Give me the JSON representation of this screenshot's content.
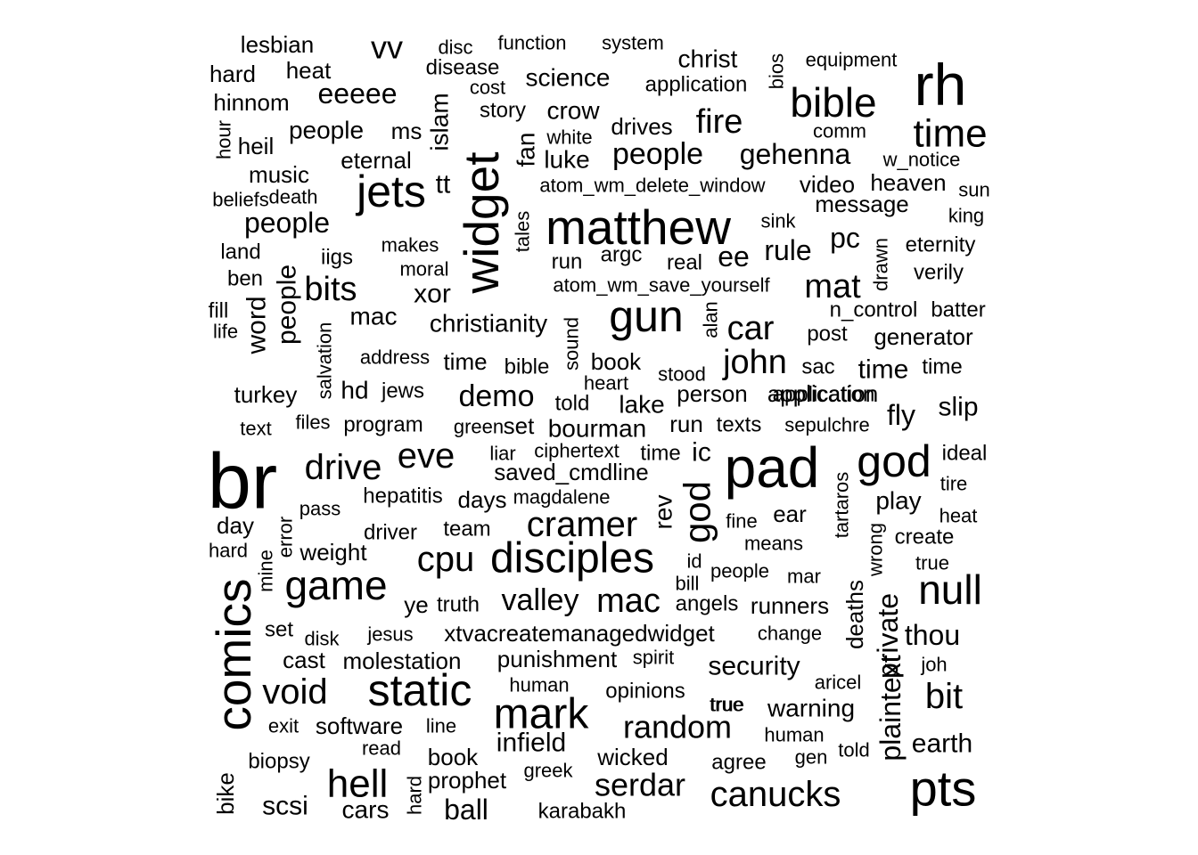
{
  "words": [
    {
      "t": "br",
      "s": 88
    },
    {
      "t": "rh",
      "s": 66
    },
    {
      "t": "pad",
      "s": 64
    },
    {
      "t": "matthew",
      "s": 55
    },
    {
      "t": "widget",
      "s": 55
    },
    {
      "t": "comics",
      "s": 55
    },
    {
      "t": "jets",
      "s": 50
    },
    {
      "t": "gun",
      "s": 50
    },
    {
      "t": "static",
      "s": 50
    },
    {
      "t": "pts",
      "s": 56
    },
    {
      "t": "god",
      "s": 50
    },
    {
      "t": "mark",
      "s": 48
    },
    {
      "t": "disciples",
      "s": 48
    },
    {
      "t": "bible",
      "s": 46
    },
    {
      "t": "game",
      "s": 46
    },
    {
      "t": "null",
      "s": 46
    },
    {
      "t": "time",
      "s": 44
    },
    {
      "t": "hell",
      "s": 44
    },
    {
      "t": "god",
      "s": 42
    },
    {
      "t": "cramer",
      "s": 40
    },
    {
      "t": "cpu",
      "s": 40
    },
    {
      "t": "eve",
      "s": 40
    },
    {
      "t": "drive",
      "s": 40
    },
    {
      "t": "void",
      "s": 40
    },
    {
      "t": "canucks",
      "s": 40
    },
    {
      "t": "bit",
      "s": 40
    },
    {
      "t": "mac",
      "s": 38
    },
    {
      "t": "car",
      "s": 38
    },
    {
      "t": "bits",
      "s": 38
    },
    {
      "t": "john",
      "s": 38
    },
    {
      "t": "mat",
      "s": 38
    },
    {
      "t": "serdar",
      "s": 36
    },
    {
      "t": "fire",
      "s": 38
    },
    {
      "t": "random",
      "s": 36
    },
    {
      "t": "demo",
      "s": 34
    },
    {
      "t": "valley",
      "s": 34
    },
    {
      "t": "vv",
      "s": 36
    },
    {
      "t": "plaintext",
      "s": 32
    },
    {
      "t": "eeeee",
      "s": 32
    },
    {
      "t": "people",
      "s": 34
    },
    {
      "t": "people",
      "s": 32
    },
    {
      "t": "gehenna",
      "s": 32
    },
    {
      "t": "people",
      "s": 30
    },
    {
      "t": "security",
      "s": 30
    },
    {
      "t": "rule",
      "s": 32
    },
    {
      "t": "word",
      "s": 30
    },
    {
      "t": "ee",
      "s": 32
    },
    {
      "t": "pc",
      "s": 32
    },
    {
      "t": "xor",
      "s": 30
    },
    {
      "t": "private",
      "s": 32
    },
    {
      "t": "thou",
      "s": 32
    },
    {
      "t": "ball",
      "s": 32
    },
    {
      "t": "scsi",
      "s": 30
    },
    {
      "t": "play",
      "s": 28
    },
    {
      "t": "fly",
      "s": 32
    },
    {
      "t": "slip",
      "s": 30
    },
    {
      "t": "earth",
      "s": 30
    },
    {
      "t": "warning",
      "s": 28
    },
    {
      "t": "ic",
      "s": 30
    },
    {
      "t": "rev",
      "s": 28
    },
    {
      "t": "mac",
      "s": 28
    },
    {
      "t": "infield",
      "s": 30
    },
    {
      "t": "bourman",
      "s": 28
    },
    {
      "t": "time",
      "s": 30
    },
    {
      "t": "tt",
      "s": 30
    },
    {
      "t": "islam",
      "s": 28
    },
    {
      "t": "fan",
      "s": 28
    },
    {
      "t": "set",
      "s": 26
    },
    {
      "t": "people",
      "s": 28
    },
    {
      "t": "time",
      "s": 26
    },
    {
      "t": "deaths",
      "s": 26
    },
    {
      "t": "christ",
      "s": 28
    },
    {
      "t": "science",
      "s": 28
    },
    {
      "t": "crow",
      "s": 28
    },
    {
      "t": "luke",
      "s": 28
    },
    {
      "t": "christianity",
      "s": 28
    },
    {
      "t": "hd",
      "s": 28
    },
    {
      "t": "turkey",
      "s": 26
    },
    {
      "t": "cars",
      "s": 28
    },
    {
      "t": "book",
      "s": 26
    },
    {
      "t": "lake",
      "s": 28
    },
    {
      "t": "person",
      "s": 26
    },
    {
      "t": "run",
      "s": 26
    },
    {
      "t": "software",
      "s": 26
    },
    {
      "t": "punishment",
      "s": 26
    },
    {
      "t": "bike",
      "s": 26
    },
    {
      "t": "ear",
      "s": 26
    },
    {
      "t": "application",
      "s": 26
    },
    {
      "t": "molestation",
      "s": 26
    },
    {
      "t": "saved_cmdline",
      "s": 26
    },
    {
      "t": "hepatitis",
      "s": 24
    },
    {
      "t": "jesus",
      "s": 22
    },
    {
      "t": "xtvacreatemanagedwidget",
      "s": 26
    },
    {
      "t": "runners",
      "s": 26
    },
    {
      "t": "days",
      "s": 26
    },
    {
      "t": "cast",
      "s": 26
    },
    {
      "t": "lesbian",
      "s": 26
    },
    {
      "t": "heat",
      "s": 26
    },
    {
      "t": "hard",
      "s": 26
    },
    {
      "t": "hinnom",
      "s": 26
    },
    {
      "t": "heil",
      "s": 26
    },
    {
      "t": "ms",
      "s": 26
    },
    {
      "t": "eternal",
      "s": 26
    },
    {
      "t": "music",
      "s": 26
    },
    {
      "t": "drives",
      "s": 26
    },
    {
      "t": "message",
      "s": 26
    },
    {
      "t": "heaven",
      "s": 26
    },
    {
      "t": "video",
      "s": 26
    },
    {
      "t": "generator",
      "s": 26
    },
    {
      "t": "opinions",
      "s": 24
    },
    {
      "t": "agree",
      "s": 24
    },
    {
      "t": "wicked",
      "s": 26
    },
    {
      "t": "prophet",
      "s": 26
    },
    {
      "t": "book",
      "s": 26
    },
    {
      "t": "biopsy",
      "s": 24
    },
    {
      "t": "karabakh",
      "s": 24
    },
    {
      "t": "weight",
      "s": 26
    },
    {
      "t": "ye",
      "s": 26
    },
    {
      "t": "truth",
      "s": 24
    },
    {
      "t": "angels",
      "s": 24
    },
    {
      "t": "told",
      "s": 24
    },
    {
      "t": "post",
      "s": 24
    },
    {
      "t": "texts",
      "s": 24
    },
    {
      "t": "program",
      "s": 24
    },
    {
      "t": "jews",
      "s": 24
    },
    {
      "t": "argc",
      "s": 24
    },
    {
      "t": "real",
      "s": 24
    },
    {
      "t": "verily",
      "s": 24
    },
    {
      "t": "eternity",
      "s": 24
    },
    {
      "t": "batter",
      "s": 24
    },
    {
      "t": "n_control",
      "s": 24
    },
    {
      "t": "iigs",
      "s": 24
    },
    {
      "t": "application",
      "s": 24
    },
    {
      "t": "sac",
      "s": 24
    },
    {
      "t": "time",
      "s": 24
    },
    {
      "t": "bible",
      "s": 24
    },
    {
      "t": "create",
      "s": 24
    },
    {
      "t": "day",
      "s": 26
    },
    {
      "t": "team",
      "s": 24
    },
    {
      "t": "driver",
      "s": 24
    },
    {
      "t": "heat",
      "s": 22
    },
    {
      "t": "change",
      "s": 22
    },
    {
      "t": "human",
      "s": 22
    },
    {
      "t": "spirit",
      "s": 22
    },
    {
      "t": "true",
      "s": 22
    },
    {
      "t": "human",
      "s": 22
    },
    {
      "t": "joh",
      "s": 22
    },
    {
      "t": "aricel",
      "s": 22
    },
    {
      "t": "function",
      "s": 22
    },
    {
      "t": "system",
      "s": 22
    },
    {
      "t": "disc",
      "s": 22
    },
    {
      "t": "disease",
      "s": 24
    },
    {
      "t": "cost",
      "s": 22
    },
    {
      "t": "story",
      "s": 24
    },
    {
      "t": "white",
      "s": 22
    },
    {
      "t": "comm",
      "s": 22
    },
    {
      "t": "w_notice",
      "s": 22
    },
    {
      "t": "equipment",
      "s": 22
    },
    {
      "t": "application",
      "s": 24
    },
    {
      "t": "bios",
      "s": 22
    },
    {
      "t": "atom_wm_delete_window",
      "s": 22
    },
    {
      "t": "atom_wm_save_yourself",
      "s": 22
    },
    {
      "t": "sun",
      "s": 22
    },
    {
      "t": "king",
      "s": 22
    },
    {
      "t": "sink",
      "s": 22
    },
    {
      "t": "tales",
      "s": 22
    },
    {
      "t": "run",
      "s": 24
    },
    {
      "t": "makes",
      "s": 22
    },
    {
      "t": "land",
      "s": 24
    },
    {
      "t": "moral",
      "s": 22
    },
    {
      "t": "ben",
      "s": 24
    },
    {
      "t": "fill",
      "s": 24
    },
    {
      "t": "life",
      "s": 22
    },
    {
      "t": "beliefs",
      "s": 22
    },
    {
      "t": "death",
      "s": 22
    },
    {
      "t": "hour",
      "s": 22
    },
    {
      "t": "drawn",
      "s": 22
    },
    {
      "t": "alan",
      "s": 22
    },
    {
      "t": "sound",
      "s": 22
    },
    {
      "t": "address",
      "s": 22
    },
    {
      "t": "salvation",
      "s": 22
    },
    {
      "t": "stood",
      "s": 22
    },
    {
      "t": "heart",
      "s": 22
    },
    {
      "t": "green",
      "s": 22
    },
    {
      "t": "files",
      "s": 22
    },
    {
      "t": "text",
      "s": 22
    },
    {
      "t": "sepulchre",
      "s": 22
    },
    {
      "t": "liar",
      "s": 22
    },
    {
      "t": "ciphertext",
      "s": 22
    },
    {
      "t": "time",
      "s": 24
    },
    {
      "t": "magdalene",
      "s": 22
    },
    {
      "t": "pass",
      "s": 22
    },
    {
      "t": "error",
      "s": 22
    },
    {
      "t": "fine",
      "s": 22
    },
    {
      "t": "means",
      "s": 22
    },
    {
      "t": "tartaros",
      "s": 22
    },
    {
      "t": "wrong",
      "s": 22
    },
    {
      "t": "ideal",
      "s": 24
    },
    {
      "t": "tire",
      "s": 22
    },
    {
      "t": "true",
      "s": 22
    },
    {
      "t": "mine",
      "s": 22
    },
    {
      "t": "hard",
      "s": 22
    },
    {
      "t": "id",
      "s": 22
    },
    {
      "t": "people",
      "s": 22
    },
    {
      "t": "bill",
      "s": 22
    },
    {
      "t": "mar",
      "s": 22
    },
    {
      "t": "disk",
      "s": 22
    },
    {
      "t": "set",
      "s": 24
    },
    {
      "t": "exit",
      "s": 22
    },
    {
      "t": "line",
      "s": 22
    },
    {
      "t": "read",
      "s": 22
    },
    {
      "t": "greek",
      "s": 22
    },
    {
      "t": "hard",
      "s": 22
    },
    {
      "t": "true",
      "s": 22
    },
    {
      "t": "gen",
      "s": 22
    },
    {
      "t": "told",
      "s": 22
    }
  ]
}
